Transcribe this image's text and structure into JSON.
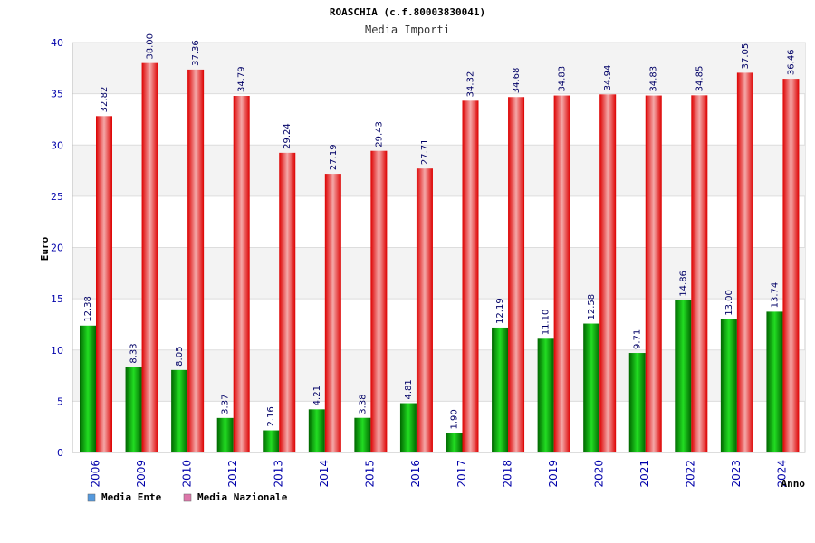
{
  "chart_data": {
    "type": "bar",
    "title": "ROASCHIA (c.f.80003830041)",
    "subtitle": "Media Importi",
    "ylabel": "Euro",
    "xlabel": "Anno",
    "ylim": [
      0,
      40
    ],
    "yticks": [
      0,
      5,
      10,
      15,
      20,
      25,
      30,
      35,
      40
    ],
    "grid": true,
    "legend_position": "bottom-left",
    "categories": [
      "2006",
      "2009",
      "2010",
      "2012",
      "2013",
      "2014",
      "2015",
      "2016",
      "2017",
      "2018",
      "2019",
      "2020",
      "2021",
      "2022",
      "2023",
      "2024"
    ],
    "series": [
      {
        "name": "Media Ente",
        "color": "#00aa00",
        "legend_color": "#5599dd",
        "values": [
          12.38,
          8.33,
          8.05,
          3.37,
          2.16,
          4.21,
          3.38,
          4.81,
          1.9,
          12.19,
          11.1,
          12.58,
          9.71,
          14.86,
          13.0,
          13.74
        ],
        "labels": [
          "12.38",
          "8.33",
          "8.05",
          "3.37",
          "2.16",
          "4.21",
          "3.38",
          "4.81",
          "1.90",
          "12.19",
          "11.10",
          "12.58",
          "9.71",
          "14.86",
          "13.00",
          "13.74"
        ]
      },
      {
        "name": "Media Nazionale",
        "color": "#ee1111",
        "legend_color": "#dd77aa",
        "values": [
          32.82,
          38.0,
          37.36,
          34.79,
          29.24,
          27.19,
          29.43,
          27.71,
          34.32,
          34.68,
          34.83,
          34.94,
          34.83,
          34.85,
          37.05,
          36.46
        ],
        "labels": [
          "32.82",
          "38.00",
          "37.36",
          "34.79",
          "29.24",
          "27.19",
          "29.43",
          "27.71",
          "34.32",
          "34.68",
          "34.83",
          "34.94",
          "34.83",
          "34.85",
          "37.05",
          "36.46"
        ]
      }
    ]
  }
}
